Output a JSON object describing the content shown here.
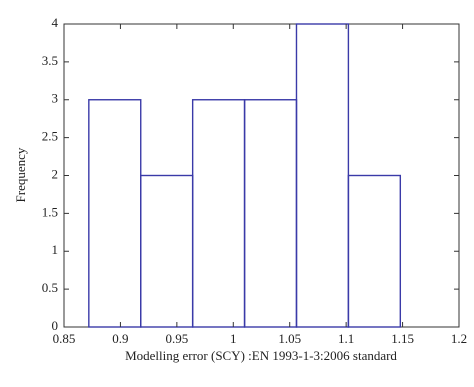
{
  "chart_data": {
    "type": "histogram",
    "x_label": "Modelling error (SCY) :EN 1993-1-3:2006 standard",
    "y_label": "Frequency",
    "bins": [
      0.872,
      0.918,
      0.964,
      1.01,
      1.056,
      1.102,
      1.148
    ],
    "counts": [
      3,
      2,
      3,
      3,
      4,
      2
    ],
    "color": "#3a3aa8",
    "xlim": [
      0.85,
      1.2
    ],
    "xticks": [
      0.85,
      0.9,
      0.95,
      1,
      1.05,
      1.1,
      1.15,
      1.2
    ],
    "ylim": [
      0,
      4
    ],
    "yticks": [
      0,
      0.5,
      1,
      1.5,
      2,
      2.5,
      3,
      3.5,
      4
    ]
  }
}
